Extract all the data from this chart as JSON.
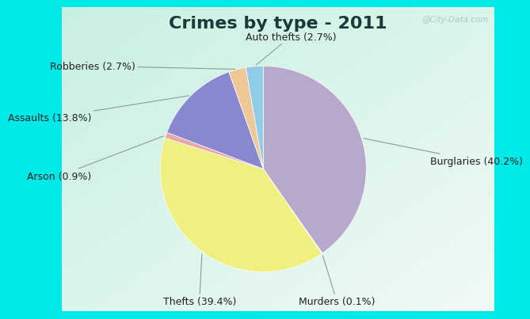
{
  "title": "Crimes by type - 2011",
  "slices": [
    {
      "label": "Burglaries",
      "pct": 40.2,
      "color": "#b8a8cc"
    },
    {
      "label": "Murders",
      "pct": 0.1,
      "color": "#d4e8a0"
    },
    {
      "label": "Thefts",
      "pct": 39.4,
      "color": "#f0f080"
    },
    {
      "label": "Arson",
      "pct": 0.9,
      "color": "#e8a8a8"
    },
    {
      "label": "Assaults",
      "pct": 13.8,
      "color": "#8888d0"
    },
    {
      "label": "Robberies",
      "pct": 2.7,
      "color": "#f0c898"
    },
    {
      "label": "Auto thefts",
      "pct": 2.7,
      "color": "#90cce8"
    }
  ],
  "border_color": "#00e8e8",
  "bg_top_left": "#c8f0e0",
  "bg_bottom_right": "#e8f8f0",
  "title_fontsize": 16,
  "label_fontsize": 9,
  "watermark": "@City-Data.com",
  "border_width": 8,
  "title_color": "#1a3a3a",
  "label_color": "#222222",
  "line_color": "#8899aa"
}
